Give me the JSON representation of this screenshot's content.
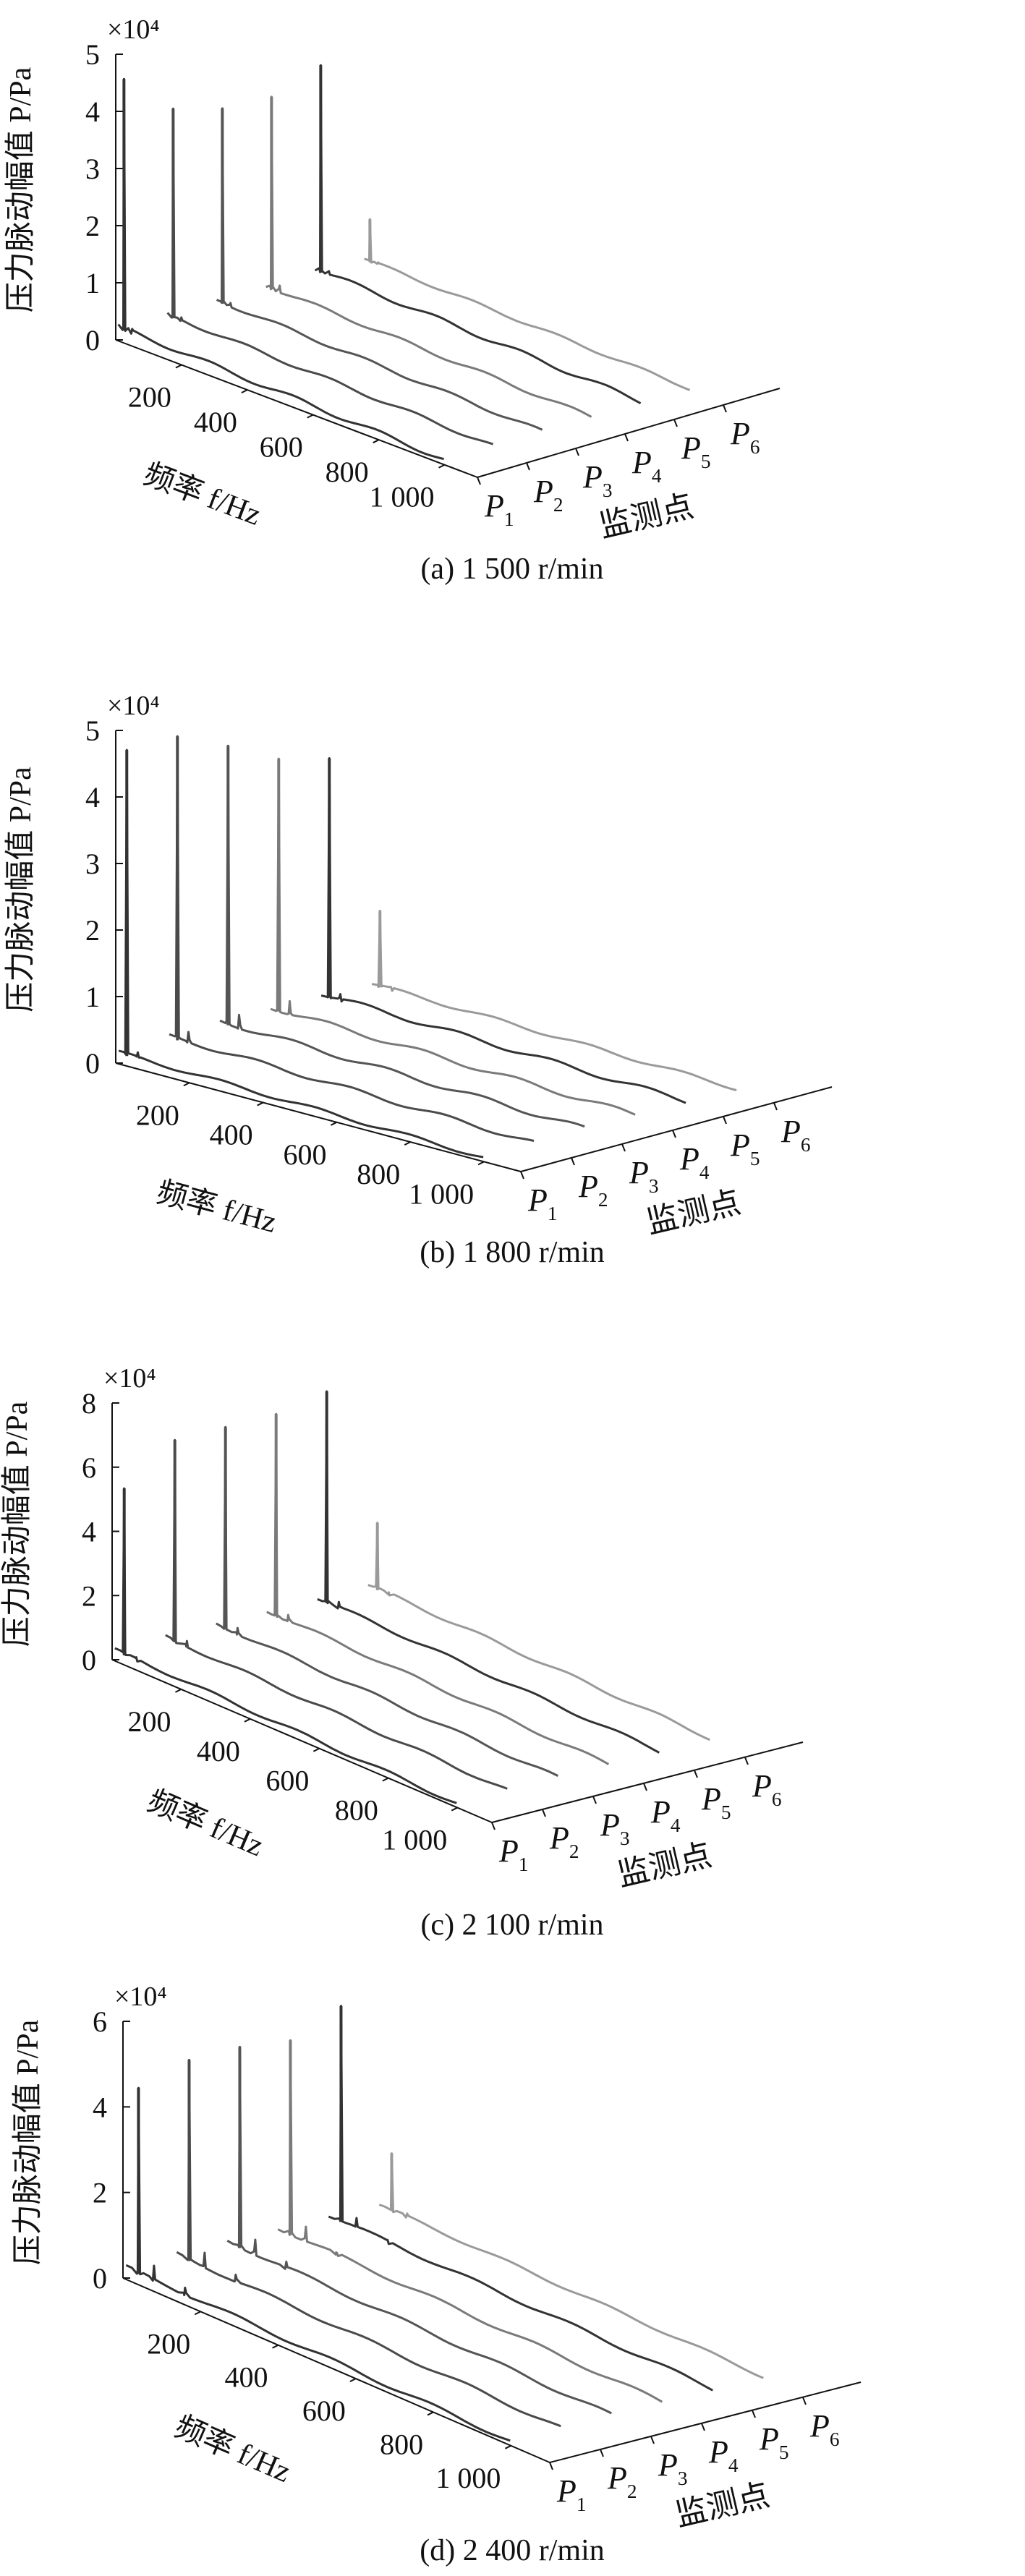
{
  "chart_data": [
    {
      "type": "line",
      "view": "3d-waterfall",
      "caption": "(a) 1 500 r/min",
      "z_multiplier": "×10⁴",
      "zlabel": "压力脉动幅值 P/Pa",
      "xlabel": "频率 f/Hz",
      "ylabel": "监测点",
      "zlim": [
        0,
        5
      ],
      "zticks": [
        "0",
        "1",
        "2",
        "3",
        "4",
        "5"
      ],
      "xlim": [
        0,
        1100
      ],
      "xticks": [
        "200",
        "400",
        "600",
        "800",
        "1 000"
      ],
      "yticks": [
        "P1",
        "P2",
        "P3",
        "P4",
        "P5",
        "P6"
      ],
      "series": [
        {
          "name": "P1",
          "color": "#333333",
          "baseline": 0.22,
          "peak": {
            "x": 25,
            "value": 4.62
          },
          "secondary": [
            {
              "x": 50,
              "value": 0.3
            }
          ]
        },
        {
          "name": "P2",
          "color": "#4a4a4a",
          "baseline": 0.18,
          "peak": {
            "x": 25,
            "value": 3.85
          },
          "secondary": [
            {
              "x": 50,
              "value": 0.25
            }
          ]
        },
        {
          "name": "P3",
          "color": "#555555",
          "baseline": 0.18,
          "peak": {
            "x": 25,
            "value": 3.6
          },
          "secondary": [
            {
              "x": 50,
              "value": 0.25
            }
          ]
        },
        {
          "name": "P4",
          "color": "#7a7a7a",
          "baseline": 0.18,
          "peak": {
            "x": 25,
            "value": 3.55
          },
          "secondary": [
            {
              "x": 50,
              "value": 0.3
            }
          ]
        },
        {
          "name": "P5",
          "color": "#333333",
          "baseline": 0.22,
          "peak": {
            "x": 25,
            "value": 3.85
          },
          "secondary": [
            {
              "x": 50,
              "value": 0.3
            }
          ]
        },
        {
          "name": "P6",
          "color": "#9a9a9a",
          "baseline": 0.15,
          "peak": {
            "x": 25,
            "value": 0.9
          },
          "secondary": [
            {
              "x": 50,
              "value": 0.2
            }
          ]
        }
      ]
    },
    {
      "type": "line",
      "view": "3d-waterfall",
      "caption": "(b) 1 800 r/min",
      "z_multiplier": "×10⁴",
      "zlabel": "压力脉动幅值 P/Pa",
      "xlabel": "频率 f/Hz",
      "ylabel": "监测点",
      "zlim": [
        0,
        5
      ],
      "zticks": [
        "0",
        "1",
        "2",
        "3",
        "4",
        "5"
      ],
      "xlim": [
        0,
        1100
      ],
      "xticks": [
        "200",
        "400",
        "600",
        "800",
        "1 000"
      ],
      "yticks": [
        "P1",
        "P2",
        "P3",
        "P4",
        "P5",
        "P6"
      ],
      "series": [
        {
          "name": "P1",
          "color": "#333333",
          "baseline": 0.15,
          "peak": {
            "x": 30,
            "value": 4.75
          },
          "secondary": [
            {
              "x": 60,
              "value": 0.25
            }
          ]
        },
        {
          "name": "P2",
          "color": "#4a4a4a",
          "baseline": 0.18,
          "peak": {
            "x": 30,
            "value": 4.75
          },
          "secondary": [
            {
              "x": 60,
              "value": 0.35
            }
          ]
        },
        {
          "name": "P3",
          "color": "#555555",
          "baseline": 0.2,
          "peak": {
            "x": 30,
            "value": 4.4
          },
          "secondary": [
            {
              "x": 60,
              "value": 0.4
            }
          ]
        },
        {
          "name": "P4",
          "color": "#7a7a7a",
          "baseline": 0.2,
          "peak": {
            "x": 30,
            "value": 4.0
          },
          "secondary": [
            {
              "x": 60,
              "value": 0.4
            }
          ]
        },
        {
          "name": "P5",
          "color": "#333333",
          "baseline": 0.2,
          "peak": {
            "x": 30,
            "value": 3.8
          },
          "secondary": [
            {
              "x": 60,
              "value": 0.3
            }
          ]
        },
        {
          "name": "P6",
          "color": "#9a9a9a",
          "baseline": 0.15,
          "peak": {
            "x": 30,
            "value": 1.3
          },
          "secondary": [
            {
              "x": 60,
              "value": 0.2
            }
          ]
        }
      ]
    },
    {
      "type": "line",
      "view": "3d-waterfall",
      "caption": "(c) 2 100 r/min",
      "z_multiplier": "×10⁴",
      "zlabel": "压力脉动幅值 P/Pa",
      "xlabel": "频率 f/Hz",
      "ylabel": "监测点",
      "zlim": [
        0,
        8
      ],
      "zticks": [
        "0",
        "2",
        "4",
        "6",
        "8"
      ],
      "xlim": [
        0,
        1100
      ],
      "xticks": [
        "200",
        "400",
        "600",
        "800",
        "1 000"
      ],
      "yticks": [
        "P1",
        "P2",
        "P3",
        "P4",
        "P5",
        "P6"
      ],
      "series": [
        {
          "name": "P1",
          "color": "#333333",
          "baseline": 0.3,
          "peak": {
            "x": 35,
            "value": 5.5
          },
          "secondary": [
            {
              "x": 70,
              "value": 0.4
            }
          ]
        },
        {
          "name": "P2",
          "color": "#4a4a4a",
          "baseline": 0.3,
          "peak": {
            "x": 35,
            "value": 6.6
          },
          "secondary": [
            {
              "x": 70,
              "value": 0.5
            }
          ]
        },
        {
          "name": "P3",
          "color": "#555555",
          "baseline": 0.3,
          "peak": {
            "x": 35,
            "value": 6.6
          },
          "secondary": [
            {
              "x": 70,
              "value": 0.5
            }
          ]
        },
        {
          "name": "P4",
          "color": "#7a7a7a",
          "baseline": 0.3,
          "peak": {
            "x": 35,
            "value": 6.6
          },
          "secondary": [
            {
              "x": 70,
              "value": 0.5
            }
          ]
        },
        {
          "name": "P5",
          "color": "#333333",
          "baseline": 0.3,
          "peak": {
            "x": 35,
            "value": 6.9
          },
          "secondary": [
            {
              "x": 70,
              "value": 0.5
            }
          ]
        },
        {
          "name": "P6",
          "color": "#9a9a9a",
          "baseline": 0.3,
          "peak": {
            "x": 35,
            "value": 2.4
          },
          "secondary": [
            {
              "x": 70,
              "value": 0.3
            }
          ]
        }
      ]
    },
    {
      "type": "line",
      "view": "3d-waterfall",
      "caption": "(d) 2 400 r/min",
      "z_multiplier": "×10⁴",
      "zlabel": "压力脉动幅值 P/Pa",
      "xlabel": "频率 f/Hz",
      "ylabel": "监测点",
      "zlim": [
        0,
        6
      ],
      "zticks": [
        "0",
        "2",
        "4",
        "6"
      ],
      "xlim": [
        0,
        1100
      ],
      "xticks": [
        "200",
        "400",
        "600",
        "800",
        "1 000"
      ],
      "yticks": [
        "P1",
        "P2",
        "P3",
        "P4",
        "P5",
        "P6"
      ],
      "series": [
        {
          "name": "P1",
          "color": "#333333",
          "baseline": 0.25,
          "peak": {
            "x": 40,
            "value": 4.6
          },
          "secondary": [
            {
              "x": 80,
              "value": 0.6
            },
            {
              "x": 160,
              "value": 0.4
            }
          ]
        },
        {
          "name": "P2",
          "color": "#4a4a4a",
          "baseline": 0.25,
          "peak": {
            "x": 40,
            "value": 4.95
          },
          "secondary": [
            {
              "x": 80,
              "value": 0.6
            },
            {
              "x": 160,
              "value": 0.4
            }
          ]
        },
        {
          "name": "P3",
          "color": "#555555",
          "baseline": 0.25,
          "peak": {
            "x": 40,
            "value": 4.95
          },
          "secondary": [
            {
              "x": 80,
              "value": 0.6
            },
            {
              "x": 160,
              "value": 0.4
            }
          ]
        },
        {
          "name": "P4",
          "color": "#7a7a7a",
          "baseline": 0.25,
          "peak": {
            "x": 40,
            "value": 4.8
          },
          "secondary": [
            {
              "x": 80,
              "value": 0.6
            },
            {
              "x": 160,
              "value": 0.3
            }
          ]
        },
        {
          "name": "P5",
          "color": "#333333",
          "baseline": 0.25,
          "peak": {
            "x": 40,
            "value": 5.3
          },
          "secondary": [
            {
              "x": 80,
              "value": 0.5
            },
            {
              "x": 160,
              "value": 0.3
            }
          ]
        },
        {
          "name": "P6",
          "color": "#9a9a9a",
          "baseline": 0.2,
          "peak": {
            "x": 40,
            "value": 1.55
          },
          "secondary": [
            {
              "x": 80,
              "value": 0.3
            }
          ]
        }
      ]
    }
  ]
}
